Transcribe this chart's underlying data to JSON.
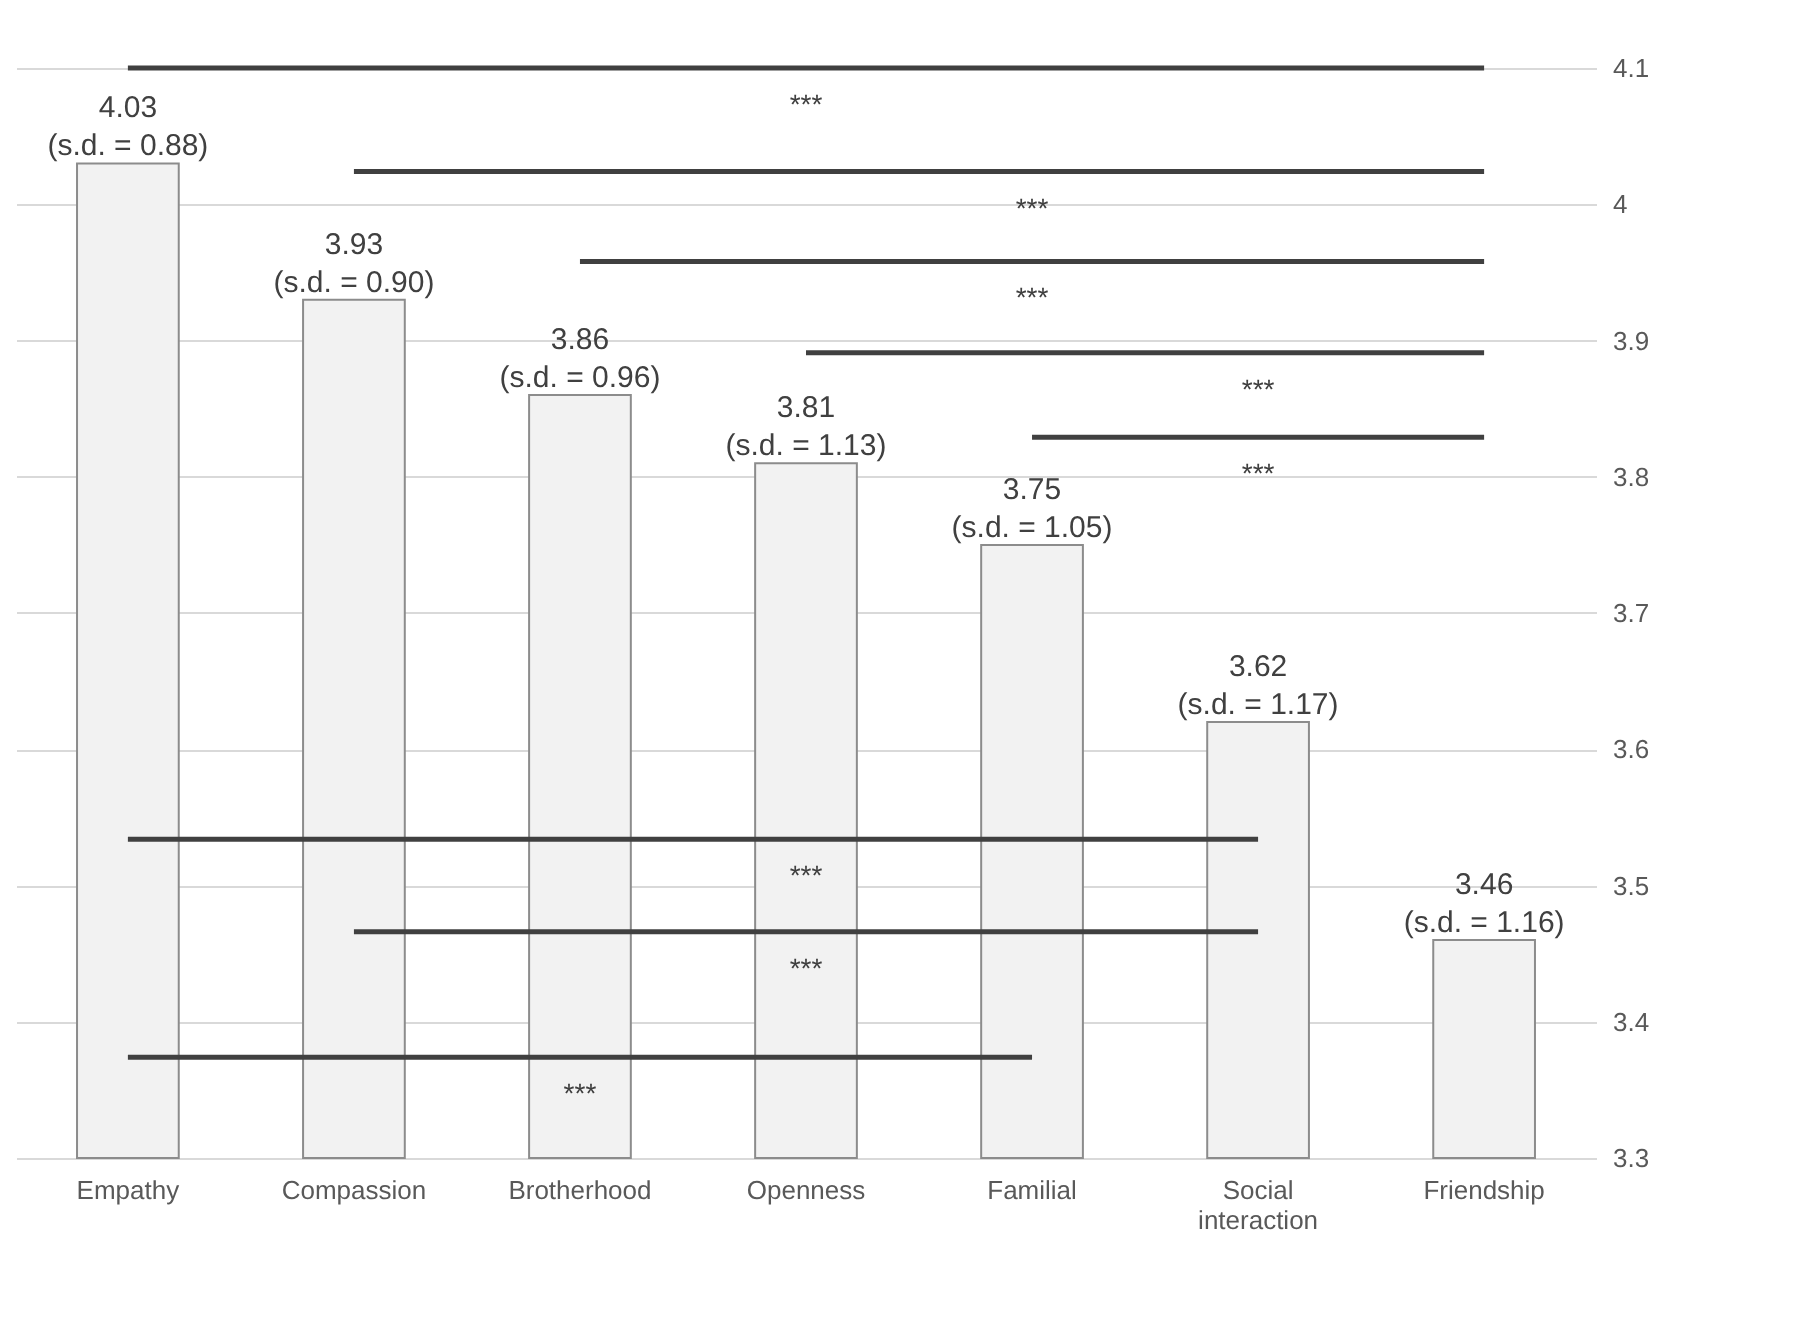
{
  "chart_data": {
    "type": "bar",
    "categories": [
      "Empathy",
      "Compassion",
      "Brotherhood",
      "Openness",
      "Familial",
      "Social interaction",
      "Friendship"
    ],
    "values": [
      4.03,
      3.93,
      3.86,
      3.81,
      3.75,
      3.62,
      3.46
    ],
    "color": "#f2f2f2",
    "value_labels": [
      "4.03",
      "3.93",
      "3.86",
      "3.81",
      "3.75",
      "3.62",
      "3.46"
    ],
    "ylim": [
      3.3,
      4.1
    ],
    "yticks": [
      3.3,
      3.4,
      3.5,
      3.6,
      3.7,
      3.8,
      3.9,
      4,
      4.1
    ],
    "grid": "y",
    "series": [
      {
        "type": "line",
        "color": "#404040",
        "x": [
          "Empathy",
          "Friendship"
        ],
        "values": [
          4.1,
          4.1
        ]
      },
      {
        "type": "line",
        "color": "#404040",
        "x": [
          "Compassion",
          "Friendship"
        ],
        "values": [
          4.024,
          4.024
        ]
      },
      {
        "type": "line",
        "color": "#404040",
        "x": [
          "Brotherhood",
          "Friendship"
        ],
        "values": [
          3.958,
          3.958
        ]
      },
      {
        "type": "line",
        "color": "#404040",
        "x": [
          "Openness",
          "Friendship"
        ],
        "values": [
          3.891,
          3.891
        ]
      },
      {
        "type": "line",
        "color": "#404040",
        "x": [
          "Familial",
          "Friendship"
        ],
        "values": [
          3.829,
          3.829
        ]
      },
      {
        "type": "line",
        "color": "#404040",
        "x": [
          "Empathy",
          "Social interaction"
        ],
        "values": [
          3.534,
          3.534
        ]
      },
      {
        "type": "line",
        "color": "#404040",
        "x": [
          "Compassion",
          "Social interaction"
        ],
        "values": [
          3.466,
          3.466
        ]
      },
      {
        "type": "line",
        "color": "#404040",
        "x": [
          "Empathy",
          "Familial"
        ],
        "values": [
          3.374,
          3.374
        ]
      }
    ],
    "annotations": [
      {
        "text": "(s.d. = 0.88)",
        "x": "Empathy",
        "y": 4.03
      },
      {
        "text": "(s.d. = 0.90)",
        "x": "Compassion",
        "y": 3.93
      },
      {
        "text": "(s.d. = 0.96)",
        "x": "Brotherhood",
        "y": 3.86
      },
      {
        "text": "(s.d. = 1.13)",
        "x": "Openness",
        "y": 3.81
      },
      {
        "text": "(s.d. = 1.05)",
        "x": "Familial",
        "y": 3.75
      },
      {
        "text": "(s.d. = 1.17)",
        "x": "Social interaction",
        "y": 3.62
      },
      {
        "text": "(s.d. = 1.16)",
        "x": "Friendship",
        "y": 3.46
      },
      "***",
      "***",
      "***",
      "***",
      "***",
      "***",
      "***",
      "***"
    ]
  }
}
